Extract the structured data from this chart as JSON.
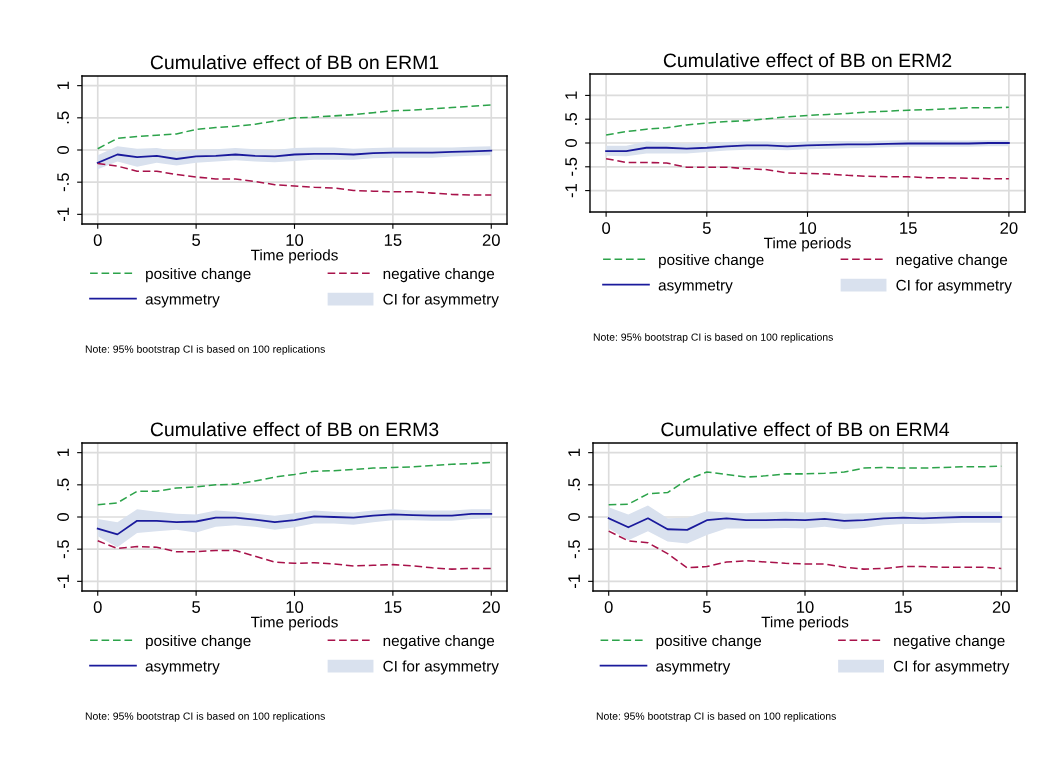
{
  "chart_data": [
    {
      "type": "line",
      "title": "Cumulative effect of BB on ERM1",
      "xlabel": "Time periods",
      "x": [
        0,
        1,
        2,
        3,
        4,
        5,
        6,
        7,
        8,
        9,
        10,
        11,
        12,
        13,
        14,
        15,
        16,
        17,
        18,
        19,
        20
      ],
      "xlim": [
        -0.8,
        20.8
      ],
      "xticks": [
        0,
        5,
        10,
        15,
        20
      ],
      "ylim": [
        -1.15,
        1.15
      ],
      "yticks": [
        {
          "value": -1,
          "label": "-1"
        },
        {
          "value": -0.5,
          "label": "-.5"
        },
        0,
        {
          "value": 0.5,
          "label": ".5"
        },
        1
      ],
      "grid": true,
      "legend": "bottom",
      "annotations": [
        "Note: 95% bootstrap CI is based on 100 replications"
      ],
      "series": [
        {
          "name": "positive change",
          "line_style": "dashed",
          "color": "#2ca34a",
          "values": [
            0.02,
            0.18,
            0.21,
            0.23,
            0.25,
            0.32,
            0.35,
            0.37,
            0.4,
            0.45,
            0.5,
            0.51,
            0.53,
            0.55,
            0.58,
            0.61,
            0.62,
            0.64,
            0.66,
            0.68,
            0.7
          ]
        },
        {
          "name": "asymmetry",
          "line_style": "solid",
          "color": "#1a1a9c",
          "values": [
            -0.2,
            -0.07,
            -0.11,
            -0.09,
            -0.14,
            -0.1,
            -0.09,
            -0.07,
            -0.09,
            -0.1,
            -0.07,
            -0.06,
            -0.06,
            -0.07,
            -0.05,
            -0.04,
            -0.04,
            -0.04,
            -0.03,
            -0.02,
            -0.01
          ]
        },
        {
          "name": "negative change",
          "line_style": "dashed",
          "color": "#a8124a",
          "values": [
            -0.21,
            -0.25,
            -0.33,
            -0.33,
            -0.38,
            -0.42,
            -0.45,
            -0.45,
            -0.49,
            -0.54,
            -0.56,
            -0.58,
            -0.59,
            -0.63,
            -0.64,
            -0.65,
            -0.65,
            -0.67,
            -0.69,
            -0.7,
            -0.7
          ]
        },
        {
          "name": "CI for asymmetry",
          "type": "area",
          "color": "#d9e1ee",
          "values": [
            null,
            null,
            null,
            null,
            null,
            null,
            null,
            null,
            null,
            null,
            null,
            null,
            null,
            null,
            null,
            null,
            null,
            null,
            null,
            null,
            null
          ],
          "lower": [
            -0.3,
            -0.18,
            -0.26,
            -0.2,
            -0.24,
            -0.2,
            -0.18,
            -0.16,
            -0.18,
            -0.19,
            -0.17,
            -0.15,
            -0.15,
            -0.15,
            -0.13,
            -0.12,
            -0.12,
            -0.12,
            -0.1,
            -0.09,
            -0.08
          ],
          "upper": [
            -0.08,
            0.06,
            0.02,
            0.03,
            -0.02,
            0.0,
            0.01,
            0.03,
            0.01,
            0.0,
            0.03,
            0.04,
            0.04,
            0.02,
            0.03,
            0.04,
            0.04,
            0.04,
            0.04,
            0.05,
            0.06
          ]
        }
      ]
    },
    {
      "type": "line",
      "title": "Cumulative effect of BB on ERM2",
      "xlabel": "Time periods",
      "x": [
        0,
        1,
        2,
        3,
        4,
        5,
        6,
        7,
        8,
        9,
        10,
        11,
        12,
        13,
        14,
        15,
        16,
        17,
        18,
        19,
        20
      ],
      "xlim": [
        -0.8,
        20.8
      ],
      "xticks": [
        0,
        5,
        10,
        15,
        20
      ],
      "ylim": [
        -1.45,
        1.45
      ],
      "yticks": [
        {
          "value": -1,
          "label": "-1"
        },
        {
          "value": -0.5,
          "label": "-.5"
        },
        0,
        {
          "value": 0.5,
          "label": ".5"
        },
        1
      ],
      "grid": true,
      "legend": "bottom",
      "annotations": [
        "Note: 95% bootstrap CI is based on 100 replications"
      ],
      "series": [
        {
          "name": "positive change",
          "line_style": "dashed",
          "color": "#2ca34a",
          "values": [
            0.17,
            0.24,
            0.29,
            0.32,
            0.38,
            0.42,
            0.45,
            0.47,
            0.51,
            0.55,
            0.58,
            0.6,
            0.62,
            0.65,
            0.67,
            0.69,
            0.7,
            0.72,
            0.74,
            0.74,
            0.75
          ]
        },
        {
          "name": "asymmetry",
          "line_style": "solid",
          "color": "#1a1a9c",
          "values": [
            -0.17,
            -0.17,
            -0.1,
            -0.1,
            -0.12,
            -0.1,
            -0.07,
            -0.05,
            -0.05,
            -0.07,
            -0.05,
            -0.04,
            -0.03,
            -0.03,
            -0.02,
            -0.01,
            -0.01,
            -0.01,
            -0.01,
            0.0,
            0.0
          ]
        },
        {
          "name": "negative change",
          "line_style": "dashed",
          "color": "#a8124a",
          "values": [
            -0.33,
            -0.41,
            -0.41,
            -0.42,
            -0.51,
            -0.51,
            -0.51,
            -0.54,
            -0.56,
            -0.63,
            -0.64,
            -0.65,
            -0.68,
            -0.7,
            -0.71,
            -0.71,
            -0.73,
            -0.73,
            -0.74,
            -0.75,
            -0.75
          ]
        },
        {
          "name": "CI for asymmetry",
          "type": "area",
          "color": "#d9e1ee",
          "values": [
            null,
            null,
            null,
            null,
            null,
            null,
            null,
            null,
            null,
            null,
            null,
            null,
            null,
            null,
            null,
            null,
            null,
            null,
            null,
            null,
            null
          ],
          "lower": [
            -0.27,
            -0.28,
            -0.22,
            -0.22,
            -0.22,
            -0.19,
            -0.16,
            -0.14,
            -0.14,
            -0.15,
            -0.13,
            -0.12,
            -0.11,
            -0.1,
            -0.09,
            -0.08,
            -0.08,
            -0.08,
            -0.08,
            -0.07,
            -0.07
          ],
          "upper": [
            -0.06,
            -0.06,
            0.03,
            0.01,
            -0.01,
            0.0,
            0.02,
            0.03,
            0.03,
            0.01,
            0.03,
            0.04,
            0.04,
            0.04,
            0.05,
            0.06,
            0.06,
            0.05,
            0.05,
            0.06,
            0.06
          ]
        }
      ]
    },
    {
      "type": "line",
      "title": "Cumulative effect of BB on ERM3",
      "xlabel": "Time periods",
      "x": [
        0,
        1,
        2,
        3,
        4,
        5,
        6,
        7,
        8,
        9,
        10,
        11,
        12,
        13,
        14,
        15,
        16,
        17,
        18,
        19,
        20
      ],
      "xlim": [
        -0.8,
        20.8
      ],
      "xticks": [
        0,
        5,
        10,
        15,
        20
      ],
      "ylim": [
        -1.15,
        1.15
      ],
      "yticks": [
        {
          "value": -1,
          "label": "-1"
        },
        {
          "value": -0.5,
          "label": "-.5"
        },
        0,
        {
          "value": 0.5,
          "label": ".5"
        },
        1
      ],
      "grid": true,
      "legend": "bottom",
      "annotations": [
        "Note: 95% bootstrap CI is based on 100 replications"
      ],
      "series": [
        {
          "name": "positive change",
          "line_style": "dashed",
          "color": "#2ca34a",
          "values": [
            0.19,
            0.22,
            0.4,
            0.4,
            0.45,
            0.47,
            0.5,
            0.51,
            0.56,
            0.62,
            0.66,
            0.71,
            0.72,
            0.74,
            0.76,
            0.77,
            0.78,
            0.8,
            0.82,
            0.83,
            0.85
          ]
        },
        {
          "name": "asymmetry",
          "line_style": "solid",
          "color": "#1a1a9c",
          "values": [
            -0.18,
            -0.27,
            -0.06,
            -0.06,
            -0.08,
            -0.07,
            -0.01,
            -0.01,
            -0.04,
            -0.08,
            -0.05,
            0.01,
            0.0,
            -0.01,
            0.02,
            0.04,
            0.03,
            0.02,
            0.02,
            0.05,
            0.05
          ]
        },
        {
          "name": "negative change",
          "line_style": "dashed",
          "color": "#a8124a",
          "values": [
            -0.37,
            -0.49,
            -0.46,
            -0.47,
            -0.54,
            -0.54,
            -0.52,
            -0.52,
            -0.61,
            -0.7,
            -0.72,
            -0.71,
            -0.73,
            -0.76,
            -0.75,
            -0.74,
            -0.76,
            -0.79,
            -0.81,
            -0.8,
            -0.8
          ]
        },
        {
          "name": "CI for asymmetry",
          "type": "area",
          "color": "#d9e1ee",
          "values": [
            null,
            null,
            null,
            null,
            null,
            null,
            null,
            null,
            null,
            null,
            null,
            null,
            null,
            null,
            null,
            null,
            null,
            null,
            null,
            null,
            null
          ],
          "lower": [
            -0.3,
            -0.47,
            -0.25,
            -0.22,
            -0.2,
            -0.24,
            -0.15,
            -0.13,
            -0.15,
            -0.2,
            -0.16,
            -0.1,
            -0.1,
            -0.12,
            -0.08,
            -0.05,
            -0.05,
            -0.06,
            -0.06,
            -0.03,
            -0.02
          ],
          "upper": [
            -0.03,
            -0.08,
            0.12,
            0.08,
            0.05,
            0.04,
            0.1,
            0.08,
            0.05,
            0.02,
            0.06,
            0.1,
            0.08,
            0.07,
            0.1,
            0.12,
            0.1,
            0.1,
            0.1,
            0.12,
            0.12
          ]
        }
      ]
    },
    {
      "type": "line",
      "title": "Cumulative effect of BB on ERM4",
      "xlabel": "Time periods",
      "x": [
        0,
        1,
        2,
        3,
        4,
        5,
        6,
        7,
        8,
        9,
        10,
        11,
        12,
        13,
        14,
        15,
        16,
        17,
        18,
        19,
        20
      ],
      "xlim": [
        -0.8,
        20.8
      ],
      "xticks": [
        0,
        5,
        10,
        15,
        20
      ],
      "ylim": [
        -1.15,
        1.15
      ],
      "yticks": [
        {
          "value": -1,
          "label": "-1"
        },
        {
          "value": -0.5,
          "label": "-.5"
        },
        0,
        {
          "value": 0.5,
          "label": ".5"
        },
        1
      ],
      "grid": true,
      "legend": "bottom",
      "annotations": [
        "Note: 95% bootstrap CI is based on 100 replications"
      ],
      "series": [
        {
          "name": "positive change",
          "line_style": "dashed",
          "color": "#2ca34a",
          "values": [
            0.19,
            0.2,
            0.36,
            0.38,
            0.58,
            0.7,
            0.66,
            0.62,
            0.64,
            0.67,
            0.67,
            0.68,
            0.7,
            0.76,
            0.77,
            0.76,
            0.76,
            0.77,
            0.78,
            0.78,
            0.79
          ]
        },
        {
          "name": "asymmetry",
          "line_style": "solid",
          "color": "#1a1a9c",
          "values": [
            -0.02,
            -0.16,
            -0.02,
            -0.19,
            -0.2,
            -0.05,
            -0.02,
            -0.05,
            -0.05,
            -0.04,
            -0.05,
            -0.03,
            -0.06,
            -0.05,
            -0.02,
            -0.01,
            -0.02,
            -0.01,
            0.0,
            0.0,
            0.0
          ]
        },
        {
          "name": "negative change",
          "line_style": "dashed",
          "color": "#a8124a",
          "values": [
            -0.22,
            -0.37,
            -0.4,
            -0.57,
            -0.79,
            -0.77,
            -0.7,
            -0.68,
            -0.7,
            -0.72,
            -0.73,
            -0.73,
            -0.78,
            -0.81,
            -0.8,
            -0.77,
            -0.77,
            -0.78,
            -0.78,
            -0.78,
            -0.8
          ]
        },
        {
          "name": "CI for asymmetry",
          "type": "area",
          "color": "#d9e1ee",
          "values": [
            null,
            null,
            null,
            null,
            null,
            null,
            null,
            null,
            null,
            null,
            null,
            null,
            null,
            null,
            null,
            null,
            null,
            null,
            null,
            null,
            null
          ],
          "lower": [
            -0.18,
            -0.36,
            -0.22,
            -0.38,
            -0.41,
            -0.28,
            -0.18,
            -0.18,
            -0.18,
            -0.17,
            -0.18,
            -0.15,
            -0.19,
            -0.17,
            -0.13,
            -0.11,
            -0.11,
            -0.1,
            -0.09,
            -0.09,
            -0.09
          ],
          "upper": [
            0.15,
            0.04,
            0.18,
            -0.02,
            -0.01,
            0.09,
            0.07,
            0.06,
            0.07,
            0.08,
            0.07,
            0.08,
            0.05,
            0.06,
            0.07,
            0.08,
            0.07,
            0.08,
            0.08,
            0.08,
            0.08
          ]
        }
      ]
    }
  ]
}
